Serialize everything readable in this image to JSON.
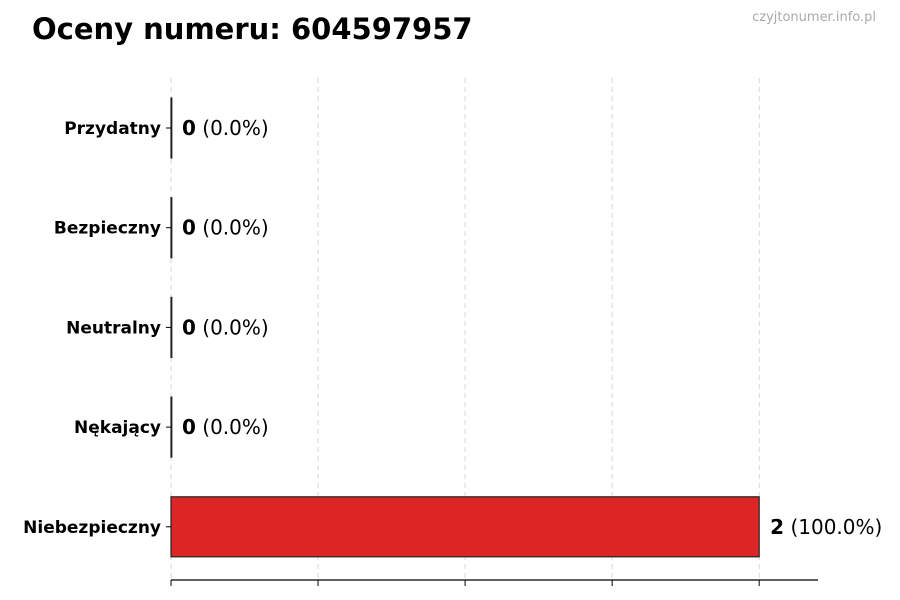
{
  "title": "Oceny numeru: 604597957",
  "watermark": "czyjtonumer.info.pl",
  "chart_data": {
    "type": "bar",
    "orientation": "horizontal",
    "title": "Oceny numeru: 604597957",
    "categories": [
      "Przydatny",
      "Bezpieczny",
      "Neutralny",
      "Nękający",
      "Niebezpieczny"
    ],
    "values": [
      0,
      0,
      0,
      0,
      2
    ],
    "data_labels": [
      {
        "count": "0",
        "pct": "(0.0%)"
      },
      {
        "count": "0",
        "pct": "(0.0%)"
      },
      {
        "count": "0",
        "pct": "(0.0%)"
      },
      {
        "count": "0",
        "pct": "(0.0%)"
      },
      {
        "count": "2",
        "pct": "(100.0%)"
      }
    ],
    "colors": [
      "#2e7d32",
      "#4caf50",
      "#9e9e9e",
      "#ff9800",
      "#dc2626"
    ],
    "xlim": [
      0,
      2.2
    ],
    "xticks": [
      0,
      0.5,
      1,
      1.5,
      2
    ],
    "xtick_labels_shown": false,
    "grid": "x-dashed",
    "xlabel": "",
    "ylabel": ""
  }
}
